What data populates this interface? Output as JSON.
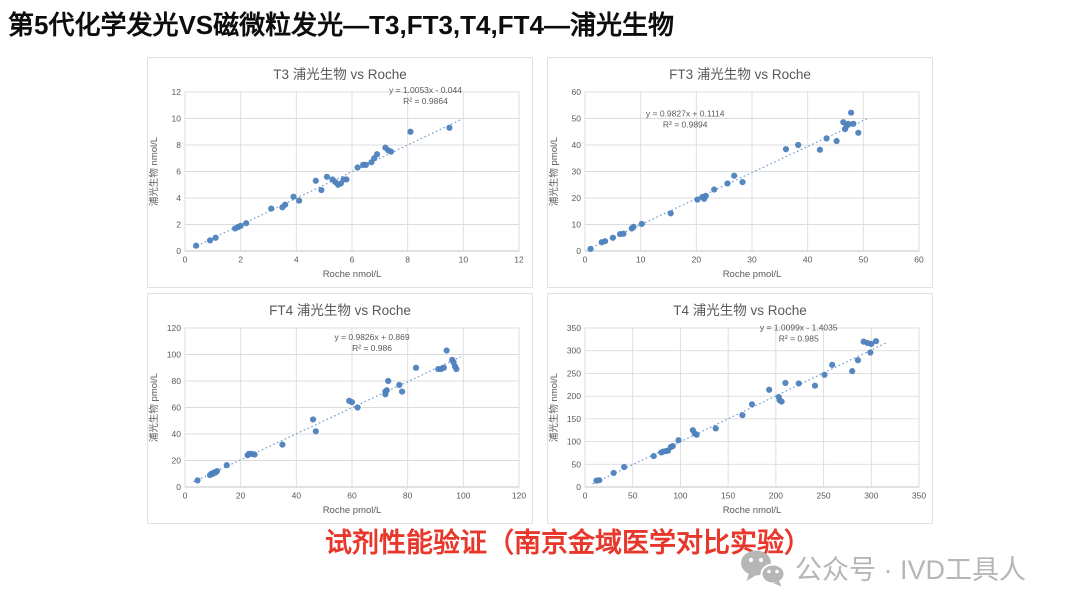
{
  "page": {
    "title": "第5代化学发光VS磁微粒发光—T3,FT3,T4,FT4—浦光生物",
    "caption": "试剂性能验证（南京金域医学对比实验）",
    "watermark": "公众号 · IVD工具人",
    "colors": {
      "accent": "#4E81BD",
      "trend": "#6F9BD4",
      "grid": "#DCDCDC",
      "axis_text": "#595959",
      "caption_red": "#E8372B",
      "watermark_gray": "#B6B6B6"
    }
  },
  "chart_data": [
    {
      "type": "scatter",
      "title": "T3 浦光生物 vs Roche",
      "equation": "y = 1.0053x - 0.044",
      "r_squared": "R² = 0.9864",
      "xlabel": "Roche nmol/L",
      "ylabel": "浦光生物 nmol/L",
      "xlim": [
        0,
        12
      ],
      "ylim": [
        0,
        12
      ],
      "xstep": 2,
      "ystep": 2,
      "grid": true,
      "legend": "none",
      "trend": {
        "slope": 1.0053,
        "intercept": -0.044,
        "domain": [
          0.3,
          9.9
        ]
      },
      "eq_pos": [
        0.72,
        -0.02
      ],
      "points": [
        [
          0.4,
          0.4
        ],
        [
          0.9,
          0.8
        ],
        [
          1.1,
          1.0
        ],
        [
          1.8,
          1.7
        ],
        [
          1.9,
          1.8
        ],
        [
          2.0,
          1.9
        ],
        [
          2.2,
          2.1
        ],
        [
          3.1,
          3.2
        ],
        [
          3.5,
          3.3
        ],
        [
          3.6,
          3.5
        ],
        [
          3.9,
          4.1
        ],
        [
          4.1,
          3.8
        ],
        [
          4.7,
          5.3
        ],
        [
          4.9,
          4.6
        ],
        [
          5.1,
          5.6
        ],
        [
          5.3,
          5.4
        ],
        [
          5.4,
          5.2
        ],
        [
          5.5,
          5.0
        ],
        [
          5.6,
          5.1
        ],
        [
          5.7,
          5.4
        ],
        [
          5.8,
          5.4
        ],
        [
          6.2,
          6.3
        ],
        [
          6.4,
          6.5
        ],
        [
          6.5,
          6.5
        ],
        [
          6.7,
          6.7
        ],
        [
          6.8,
          7.0
        ],
        [
          6.9,
          7.3
        ],
        [
          7.2,
          7.8
        ],
        [
          7.3,
          7.6
        ],
        [
          7.4,
          7.5
        ],
        [
          8.1,
          9.0
        ],
        [
          9.5,
          9.3
        ]
      ]
    },
    {
      "type": "scatter",
      "title": "FT3 浦光生物 vs Roche",
      "equation": "y = 0.9827x + 0.1114",
      "r_squared": "R² = 0.9894",
      "xlabel": "Roche pmol/L",
      "ylabel": "浦光生物 pmol/L",
      "xlim": [
        0,
        60
      ],
      "ylim": [
        0,
        60
      ],
      "xstep": 10,
      "ystep": 10,
      "grid": true,
      "legend": "none",
      "trend": {
        "slope": 0.9827,
        "intercept": 0.1114,
        "domain": [
          0.5,
          51
        ]
      },
      "eq_pos": [
        0.3,
        0.13
      ],
      "points": [
        [
          1,
          0.8
        ],
        [
          3,
          3.3
        ],
        [
          3.6,
          3.7
        ],
        [
          5,
          5.0
        ],
        [
          6.3,
          6.4
        ],
        [
          6.9,
          6.5
        ],
        [
          8.4,
          8.5
        ],
        [
          8.7,
          9.1
        ],
        [
          10.2,
          10.2
        ],
        [
          15.4,
          14.2
        ],
        [
          20.2,
          19.4
        ],
        [
          21.1,
          20.4
        ],
        [
          21.4,
          19.7
        ],
        [
          21.7,
          20.8
        ],
        [
          23.2,
          23.2
        ],
        [
          25.6,
          25.5
        ],
        [
          26.8,
          28.4
        ],
        [
          28.3,
          26.0
        ],
        [
          36.1,
          38.4
        ],
        [
          38.3,
          40.0
        ],
        [
          42.2,
          38.2
        ],
        [
          43.4,
          42.5
        ],
        [
          45.2,
          41.5
        ],
        [
          46.4,
          48.6
        ],
        [
          46.7,
          46.0
        ],
        [
          47.0,
          47.2
        ],
        [
          47.3,
          48.0
        ],
        [
          47.8,
          52.2
        ],
        [
          48.2,
          48.0
        ],
        [
          49.1,
          44.6
        ]
      ]
    },
    {
      "type": "scatter",
      "title": "FT4 浦光生物 vs Roche",
      "equation": "y = 0.9826x + 0.869",
      "r_squared": "R² = 0.986",
      "xlabel": "Roche pmol/L",
      "ylabel": "浦光生物 pmol/L",
      "xlim": [
        0,
        120
      ],
      "ylim": [
        0,
        120
      ],
      "xstep": 20,
      "ystep": 20,
      "grid": true,
      "legend": "none",
      "trend": {
        "slope": 0.9826,
        "intercept": 0.869,
        "domain": [
          3,
          99
        ]
      },
      "eq_pos": [
        0.56,
        0.05
      ],
      "points": [
        [
          4.5,
          5
        ],
        [
          9,
          9
        ],
        [
          9.5,
          10
        ],
        [
          10,
          10
        ],
        [
          10.5,
          11
        ],
        [
          11,
          11
        ],
        [
          11.5,
          12
        ],
        [
          15,
          16.5
        ],
        [
          22.5,
          24
        ],
        [
          23,
          25
        ],
        [
          24,
          25
        ],
        [
          25,
          24.5
        ],
        [
          35,
          32
        ],
        [
          46,
          51
        ],
        [
          47,
          42
        ],
        [
          59,
          65
        ],
        [
          60,
          64
        ],
        [
          62,
          60
        ],
        [
          72,
          70
        ],
        [
          72,
          72
        ],
        [
          72.5,
          73
        ],
        [
          73,
          80
        ],
        [
          77,
          77
        ],
        [
          78,
          72
        ],
        [
          83,
          90
        ],
        [
          91,
          89
        ],
        [
          92,
          89
        ],
        [
          93,
          90
        ],
        [
          94,
          103
        ],
        [
          96,
          96
        ],
        [
          96.5,
          94
        ],
        [
          97,
          91
        ],
        [
          97.5,
          89
        ]
      ]
    },
    {
      "type": "scatter",
      "title": "T4 浦光生物 vs Roche",
      "equation": "y = 1.0099x - 1.4035",
      "r_squared": "R² = 0.985",
      "xlabel": "Roche nmol/L",
      "ylabel": "浦光生物 nmol/L",
      "xlim": [
        0,
        350
      ],
      "ylim": [
        0,
        350
      ],
      "xstep": 50,
      "ystep": 50,
      "grid": true,
      "legend": "none",
      "trend": {
        "slope": 1.0099,
        "intercept": -1.4035,
        "domain": [
          8,
          315
        ]
      },
      "eq_pos": [
        0.64,
        -0.01
      ],
      "points": [
        [
          12,
          14
        ],
        [
          15,
          15
        ],
        [
          30,
          31
        ],
        [
          41,
          44
        ],
        [
          72,
          68
        ],
        [
          80,
          76
        ],
        [
          82,
          78
        ],
        [
          85,
          79
        ],
        [
          87,
          80
        ],
        [
          90,
          88
        ],
        [
          92,
          90
        ],
        [
          98,
          103
        ],
        [
          113,
          125
        ],
        [
          115,
          118
        ],
        [
          117,
          115
        ],
        [
          137,
          129
        ],
        [
          165,
          158
        ],
        [
          175,
          182
        ],
        [
          193,
          214
        ],
        [
          203,
          198
        ],
        [
          204,
          191
        ],
        [
          206,
          188
        ],
        [
          210,
          229
        ],
        [
          224,
          228
        ],
        [
          241,
          223
        ],
        [
          251,
          247
        ],
        [
          259,
          269
        ],
        [
          280,
          255
        ],
        [
          286,
          279
        ],
        [
          292,
          320
        ],
        [
          296,
          317
        ],
        [
          299,
          296
        ],
        [
          300,
          315
        ],
        [
          305,
          321
        ]
      ]
    }
  ]
}
